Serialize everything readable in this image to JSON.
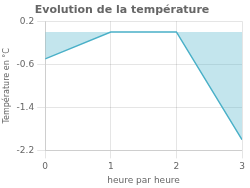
{
  "chart_data": {
    "type": "area",
    "title": "Evolution de la température",
    "xlabel": "heure par heure",
    "ylabel": "Température en °C",
    "x": [
      0,
      1,
      2,
      3
    ],
    "values": [
      -0.5,
      0.0,
      0.0,
      -2.0
    ],
    "baseline": 0.0,
    "color": "#4ab0c8",
    "xlim": [
      0,
      3
    ],
    "ylim": [
      -2.2,
      0.2
    ],
    "xticks": [
      0,
      1,
      2,
      3
    ],
    "yticks": [
      0.2,
      -0.6,
      -1.4,
      -2.2
    ],
    "grid": true
  }
}
